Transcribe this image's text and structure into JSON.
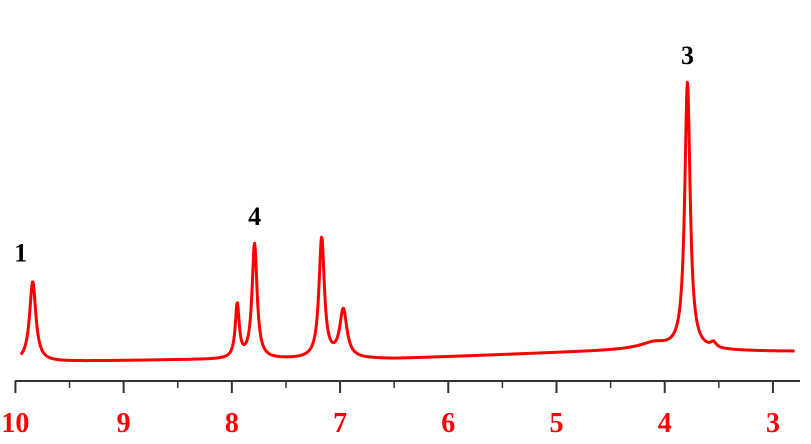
{
  "chart_data": {
    "type": "line",
    "title": "",
    "xlabel": "",
    "ylabel": "",
    "x_reversed": true,
    "xlim": [
      10.05,
      2.75
    ],
    "ylim": [
      0,
      1
    ],
    "grid": false,
    "legend": "none",
    "colors": {
      "series": "#ff0000",
      "axis": "#333333",
      "tick_labels": "#ff0000",
      "annotations": "#000000"
    },
    "tick_labels": [
      "10",
      "9",
      "8",
      "7",
      "6",
      "5",
      "4",
      "3"
    ],
    "tick_values": [
      10,
      9,
      8,
      7,
      6,
      5,
      4,
      3
    ],
    "series": [
      {
        "peaks": [
          {
            "x": 9.84,
            "height": 0.3,
            "width": 0.035
          },
          {
            "x": 7.95,
            "height": 0.2,
            "width": 0.022
          },
          {
            "x": 7.79,
            "height": 0.43,
            "width": 0.028
          },
          {
            "x": 7.17,
            "height": 0.45,
            "width": 0.03
          },
          {
            "x": 6.97,
            "height": 0.18,
            "width": 0.04
          },
          {
            "x": 3.79,
            "height": 1.0,
            "width": 0.03
          },
          {
            "x": 4.1,
            "height": 0.025,
            "width": 0.15
          },
          {
            "x": 3.55,
            "height": 0.02,
            "width": 0.03
          }
        ],
        "baseline": [
          [
            10.0,
            0.0
          ],
          [
            8.5,
            0.008
          ],
          [
            6.5,
            0.012
          ],
          [
            5.0,
            0.035
          ],
          [
            4.3,
            0.045
          ],
          [
            3.0,
            0.04
          ],
          [
            2.8,
            0.04
          ]
        ]
      }
    ],
    "annotations": [
      {
        "text": "1",
        "x": 9.84
      },
      {
        "text": "4",
        "x": 7.79
      },
      {
        "text": "3",
        "x": 3.79
      }
    ]
  }
}
